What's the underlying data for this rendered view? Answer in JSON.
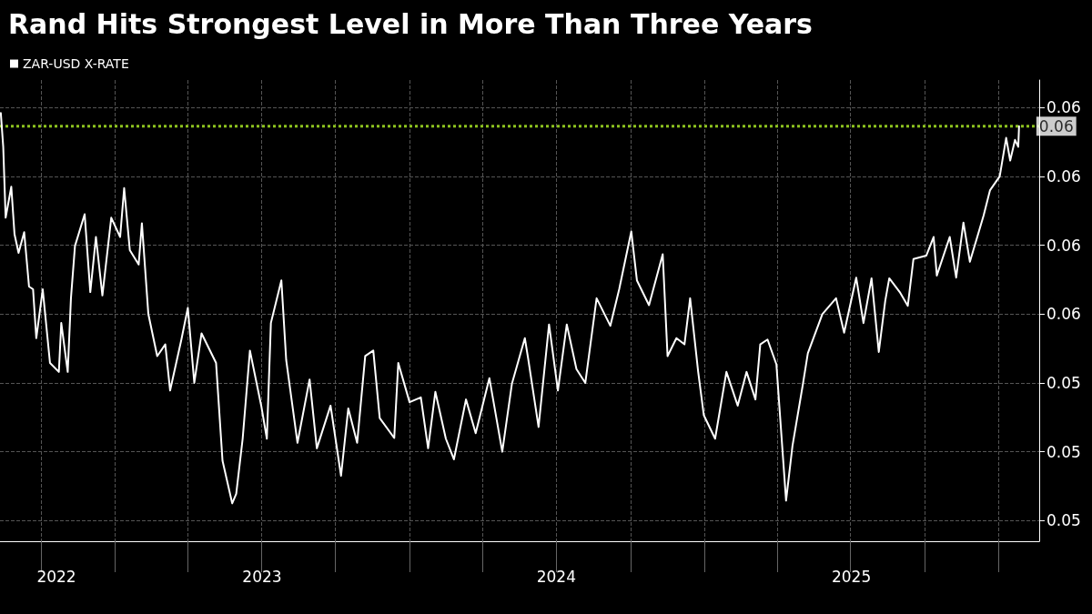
{
  "chart_data": {
    "type": "line",
    "title": "Rand Hits Strongest Level in More Than Three Years",
    "legend": "top left",
    "grid": true,
    "xlim": [
      "2022-08-11",
      "2026-02-20"
    ],
    "xticks": [
      {
        "value": "2022-10-01",
        "label": null
      },
      {
        "value": "2023-01-01",
        "label": null
      },
      {
        "value": "2023-04-01",
        "label": null
      },
      {
        "value": "2023-07-01",
        "label": null
      },
      {
        "value": "2023-10-01",
        "label": null
      },
      {
        "value": "2024-01-01",
        "label": null
      },
      {
        "value": "2024-04-01",
        "label": null
      },
      {
        "value": "2024-07-01",
        "label": null
      },
      {
        "value": "2024-10-01",
        "label": null
      },
      {
        "value": "2025-01-01",
        "label": null
      },
      {
        "value": "2025-04-01",
        "label": null
      },
      {
        "value": "2025-07-01",
        "label": null
      },
      {
        "value": "2025-10-01",
        "label": null
      },
      {
        "value": "2026-01-01",
        "label": null
      },
      {
        "value": "2022-10-20",
        "label": "2022"
      },
      {
        "value": "2023-07-02",
        "label": "2023"
      },
      {
        "value": "2024-07-01",
        "label": "2024"
      },
      {
        "value": "2025-07-02",
        "label": "2025"
      }
    ],
    "ylim": [
      0.0517,
      0.0584
    ],
    "yticks": [
      {
        "value": 0.052,
        "label": "0.05"
      },
      {
        "value": 0.053,
        "label": "0.05"
      },
      {
        "value": 0.054,
        "label": "0.05"
      },
      {
        "value": 0.055,
        "label": "0.06"
      },
      {
        "value": 0.056,
        "label": "0.06"
      },
      {
        "value": 0.057,
        "label": "0.06"
      },
      {
        "value": 0.058,
        "label": "0.06"
      }
    ],
    "ref_lines": [
      {
        "axis": "y",
        "value": 0.05773,
        "label": null,
        "color": "#8dc21f",
        "line_style": "dotted"
      }
    ],
    "annotations": [
      {
        "text": "0.06",
        "x": "2026-01-26",
        "y": 0.05773
      }
    ],
    "x": [
      "2022-08-12",
      "2022-08-15",
      "2022-08-18",
      "2022-08-25",
      "2022-08-29",
      "2022-09-03",
      "2022-09-10",
      "2022-09-16",
      "2022-09-21",
      "2022-09-25",
      "2022-10-03",
      "2022-10-12",
      "2022-10-23",
      "2022-10-26",
      "2022-11-03",
      "2022-11-07",
      "2022-11-12",
      "2022-11-24",
      "2022-12-01",
      "2022-12-08",
      "2022-12-16",
      "2022-12-27",
      "2023-01-07",
      "2023-01-12",
      "2023-01-19",
      "2023-01-30",
      "2023-02-03",
      "2023-02-11",
      "2023-02-22",
      "2023-03-04",
      "2023-03-10",
      "2023-03-24",
      "2023-04-01",
      "2023-04-09",
      "2023-04-18",
      "2023-05-06",
      "2023-05-14",
      "2023-05-26",
      "2023-05-31",
      "2023-06-08",
      "2023-06-17",
      "2023-07-01",
      "2023-07-08",
      "2023-07-13",
      "2023-07-26",
      "2023-08-01",
      "2023-08-15",
      "2023-08-30",
      "2023-09-08",
      "2023-09-25",
      "2023-10-08",
      "2023-10-17",
      "2023-10-28",
      "2023-11-07",
      "2023-11-17",
      "2023-11-25",
      "2023-12-13",
      "2023-12-18",
      "2024-01-01",
      "2024-01-15",
      "2024-01-24",
      "2024-02-02",
      "2024-02-15",
      "2024-02-25",
      "2024-03-11",
      "2024-03-23",
      "2024-04-09",
      "2024-04-25",
      "2024-05-07",
      "2024-05-23",
      "2024-05-27",
      "2024-06-09",
      "2024-06-22",
      "2024-07-03",
      "2024-07-14",
      "2024-07-26",
      "2024-08-06",
      "2024-08-20",
      "2024-09-06",
      "2024-09-17",
      "2024-10-02",
      "2024-10-09",
      "2024-10-24",
      "2024-11-10",
      "2024-11-16",
      "2024-11-27",
      "2024-12-07",
      "2024-12-14",
      "2024-12-24",
      "2024-12-31",
      "2025-01-14",
      "2025-01-28",
      "2025-02-11",
      "2025-02-22",
      "2025-03-05",
      "2025-03-11",
      "2025-03-20",
      "2025-03-31",
      "2025-04-12",
      "2025-04-20",
      "2025-05-03",
      "2025-05-09",
      "2025-05-27",
      "2025-06-13",
      "2025-06-23",
      "2025-07-08",
      "2025-07-17",
      "2025-07-27",
      "2025-08-05",
      "2025-08-13",
      "2025-08-18",
      "2025-08-31",
      "2025-09-10",
      "2025-09-17",
      "2025-10-03",
      "2025-10-12",
      "2025-10-16",
      "2025-11-01",
      "2025-11-09",
      "2025-11-18",
      "2025-11-26",
      "2025-12-13",
      "2025-12-21",
      "2026-01-02",
      "2026-01-10",
      "2026-01-15",
      "2026-01-21",
      "2026-01-25",
      "2026-01-26"
    ],
    "series": [
      {
        "name": "ZAR-USD X-RATE",
        "color": "#ffffff",
        "values": [
          0.05792,
          0.05743,
          0.0564,
          0.05685,
          0.05616,
          0.05589,
          0.05619,
          0.0554,
          0.05536,
          0.05465,
          0.05536,
          0.05429,
          0.05416,
          0.05487,
          0.05416,
          0.05523,
          0.05599,
          0.05645,
          0.05532,
          0.05612,
          0.05527,
          0.0564,
          0.05612,
          0.05683,
          0.05593,
          0.05572,
          0.05632,
          0.055,
          0.05439,
          0.05456,
          0.05389,
          0.05463,
          0.05509,
          0.054,
          0.05472,
          0.05429,
          0.05287,
          0.05225,
          0.05239,
          0.05319,
          0.05447,
          0.05367,
          0.05319,
          0.05487,
          0.05549,
          0.05433,
          0.05313,
          0.05405,
          0.05305,
          0.05367,
          0.05265,
          0.05363,
          0.05313,
          0.05439,
          0.05447,
          0.05349,
          0.0532,
          0.05429,
          0.05372,
          0.05379,
          0.05305,
          0.05387,
          0.05319,
          0.05289,
          0.05376,
          0.05327,
          0.05407,
          0.053,
          0.05399,
          0.05465,
          0.05436,
          0.05336,
          0.05485,
          0.05389,
          0.05485,
          0.0542,
          0.054,
          0.05523,
          0.05483,
          0.05536,
          0.0562,
          0.05549,
          0.05513,
          0.05587,
          0.05439,
          0.05465,
          0.05456,
          0.05523,
          0.05416,
          0.05353,
          0.05319,
          0.05416,
          0.05367,
          0.05416,
          0.05376,
          0.05456,
          0.05463,
          0.05427,
          0.05229,
          0.05309,
          0.05399,
          0.05443,
          0.055,
          0.05523,
          0.05473,
          0.05553,
          0.05487,
          0.05552,
          0.05445,
          0.05519,
          0.05552,
          0.05532,
          0.05512,
          0.0558,
          0.05585,
          0.05612,
          0.05556,
          0.05612,
          0.05553,
          0.05633,
          0.05576,
          0.05643,
          0.0568,
          0.057,
          0.05756,
          0.05723,
          0.05753,
          0.05743,
          0.05773
        ]
      }
    ]
  }
}
